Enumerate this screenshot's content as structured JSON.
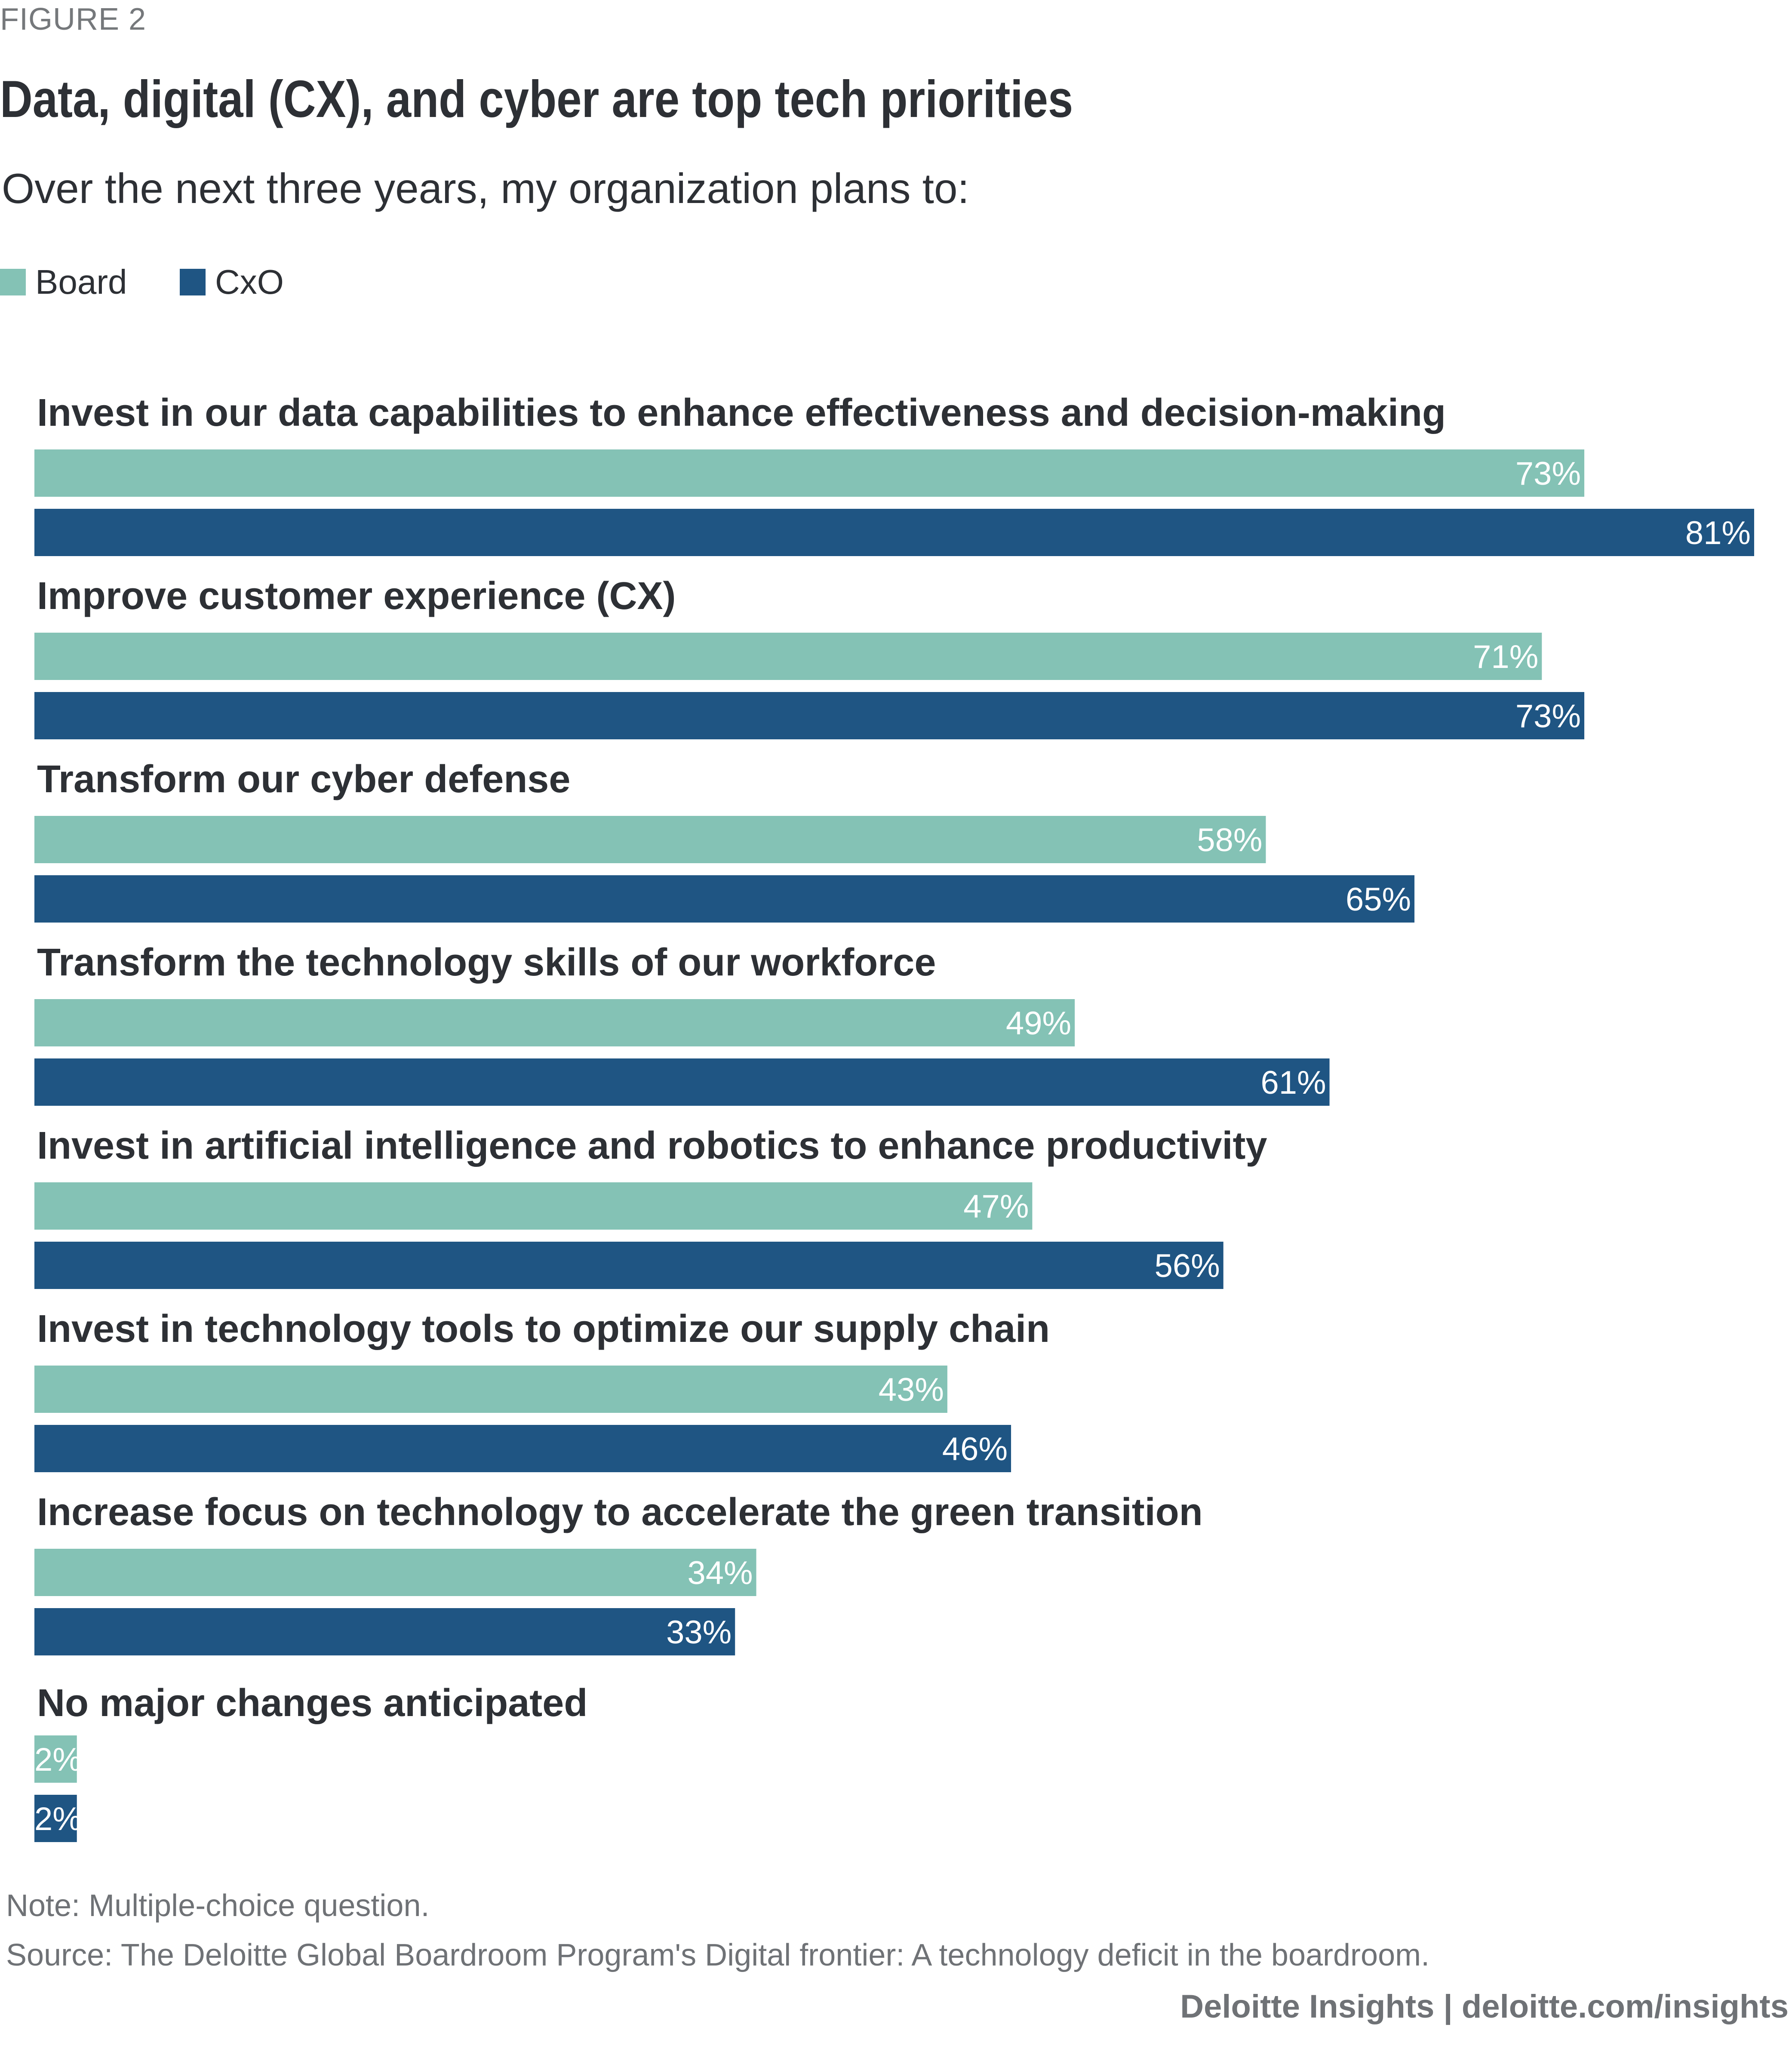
{
  "figure_label": "FIGURE 2",
  "title": "Data, digital (CX), and cyber are top tech priorities",
  "subtitle": "Over the next three years, my organization plans to:",
  "legend": [
    {
      "label": "Board",
      "color": "#84c2b5"
    },
    {
      "label": "CxO",
      "color": "#1f5583"
    }
  ],
  "footer": {
    "note": "Note: Multiple-choice question.",
    "source": "Source: The Deloitte Global Boardroom Program's Digital frontier: A technology deficit in the boardroom.",
    "credit": "Deloitte Insights | deloitte.com/insights"
  },
  "chart_data": {
    "type": "bar",
    "orientation": "horizontal",
    "title": "Data, digital (CX), and cyber are top tech priorities",
    "subtitle": "Over the next three years, my organization plans to:",
    "xlabel": "",
    "ylabel": "",
    "unit": "%",
    "xlim": [
      0,
      81
    ],
    "grid": false,
    "legend_position": "top-left",
    "categories": [
      "Invest in our data capabilities to enhance effectiveness and decision-making",
      "Improve customer experience (CX)",
      "Transform our cyber defense",
      "Transform the technology skills of our workforce",
      "Invest in artificial intelligence and robotics to enhance productivity",
      "Invest in technology tools to optimize our supply chain",
      "Increase focus on technology to accelerate the green transition",
      "No major changes anticipated"
    ],
    "series": [
      {
        "name": "Board",
        "color": "#84c2b5",
        "values": [
          73,
          71,
          58,
          49,
          47,
          43,
          34,
          2
        ]
      },
      {
        "name": "CxO",
        "color": "#1f5583",
        "values": [
          81,
          73,
          65,
          61,
          56,
          46,
          33,
          2
        ]
      }
    ]
  }
}
